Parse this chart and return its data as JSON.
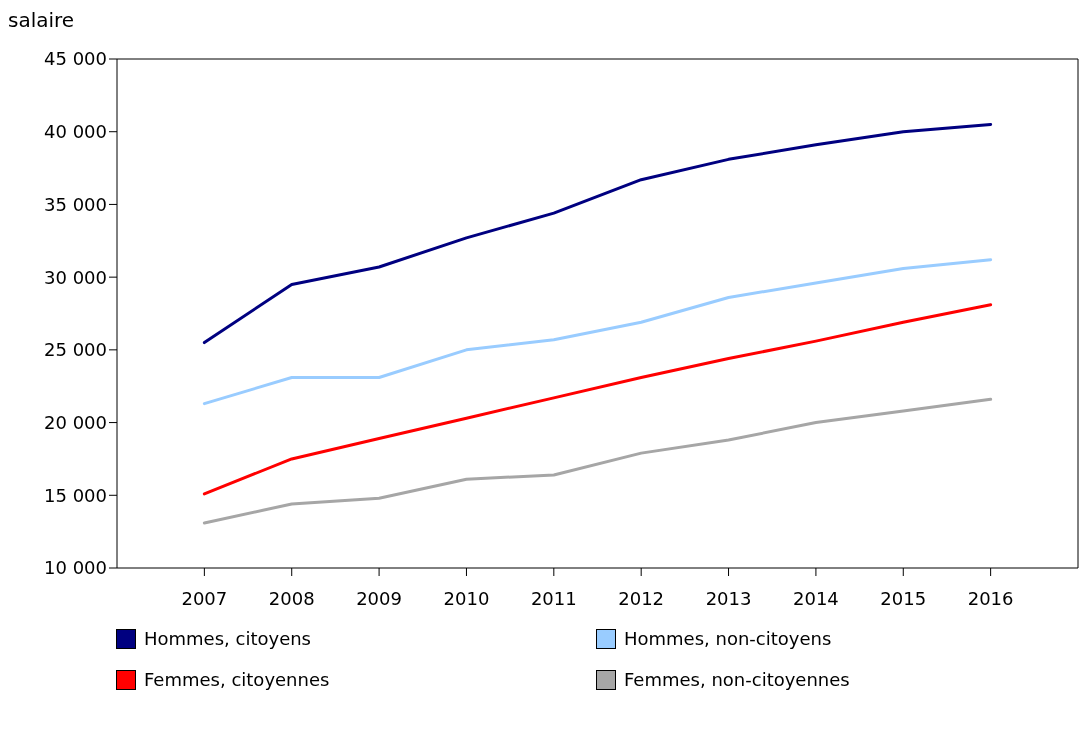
{
  "chart_data": {
    "type": "line",
    "ylabel": "salaire",
    "x": [
      2007,
      2008,
      2009,
      2010,
      2011,
      2012,
      2013,
      2014,
      2015,
      2016
    ],
    "xlim": [
      2006,
      2017
    ],
    "xticks": [
      2007,
      2008,
      2009,
      2010,
      2011,
      2012,
      2013,
      2014,
      2015,
      2016
    ],
    "ylim": [
      10000,
      45000
    ],
    "yticks": [
      {
        "value": 10000,
        "label": "10 000"
      },
      {
        "value": 15000,
        "label": "15 000"
      },
      {
        "value": 20000,
        "label": "20 000"
      },
      {
        "value": 25000,
        "label": "25 000"
      },
      {
        "value": 30000,
        "label": "30 000"
      },
      {
        "value": 35000,
        "label": "35 000"
      },
      {
        "value": 40000,
        "label": "40 000"
      },
      {
        "value": 45000,
        "label": "45 000"
      }
    ],
    "grid": false,
    "legend": "bottom",
    "marker": "none",
    "line_style": "solid",
    "series": [
      {
        "name": "Hommes, citoyens",
        "color": "#000080",
        "values": [
          25500,
          29500,
          30700,
          32700,
          34400,
          36700,
          38100,
          39100,
          40000,
          40500
        ]
      },
      {
        "name": "Hommes, non-citoyens",
        "color": "#99ccff",
        "values": [
          21300,
          23100,
          23100,
          25000,
          25700,
          26900,
          28600,
          29600,
          30600,
          31200
        ]
      },
      {
        "name": "Femmes, citoyennes",
        "color": "#ff0000",
        "values": [
          15100,
          17500,
          18900,
          20300,
          21700,
          23100,
          24400,
          25600,
          26900,
          28100
        ]
      },
      {
        "name": "Femmes, non-citoyennes",
        "color": "#a6a6a6",
        "values": [
          13100,
          14400,
          14800,
          16100,
          16400,
          17900,
          18800,
          20000,
          20800,
          21600
        ]
      }
    ]
  }
}
